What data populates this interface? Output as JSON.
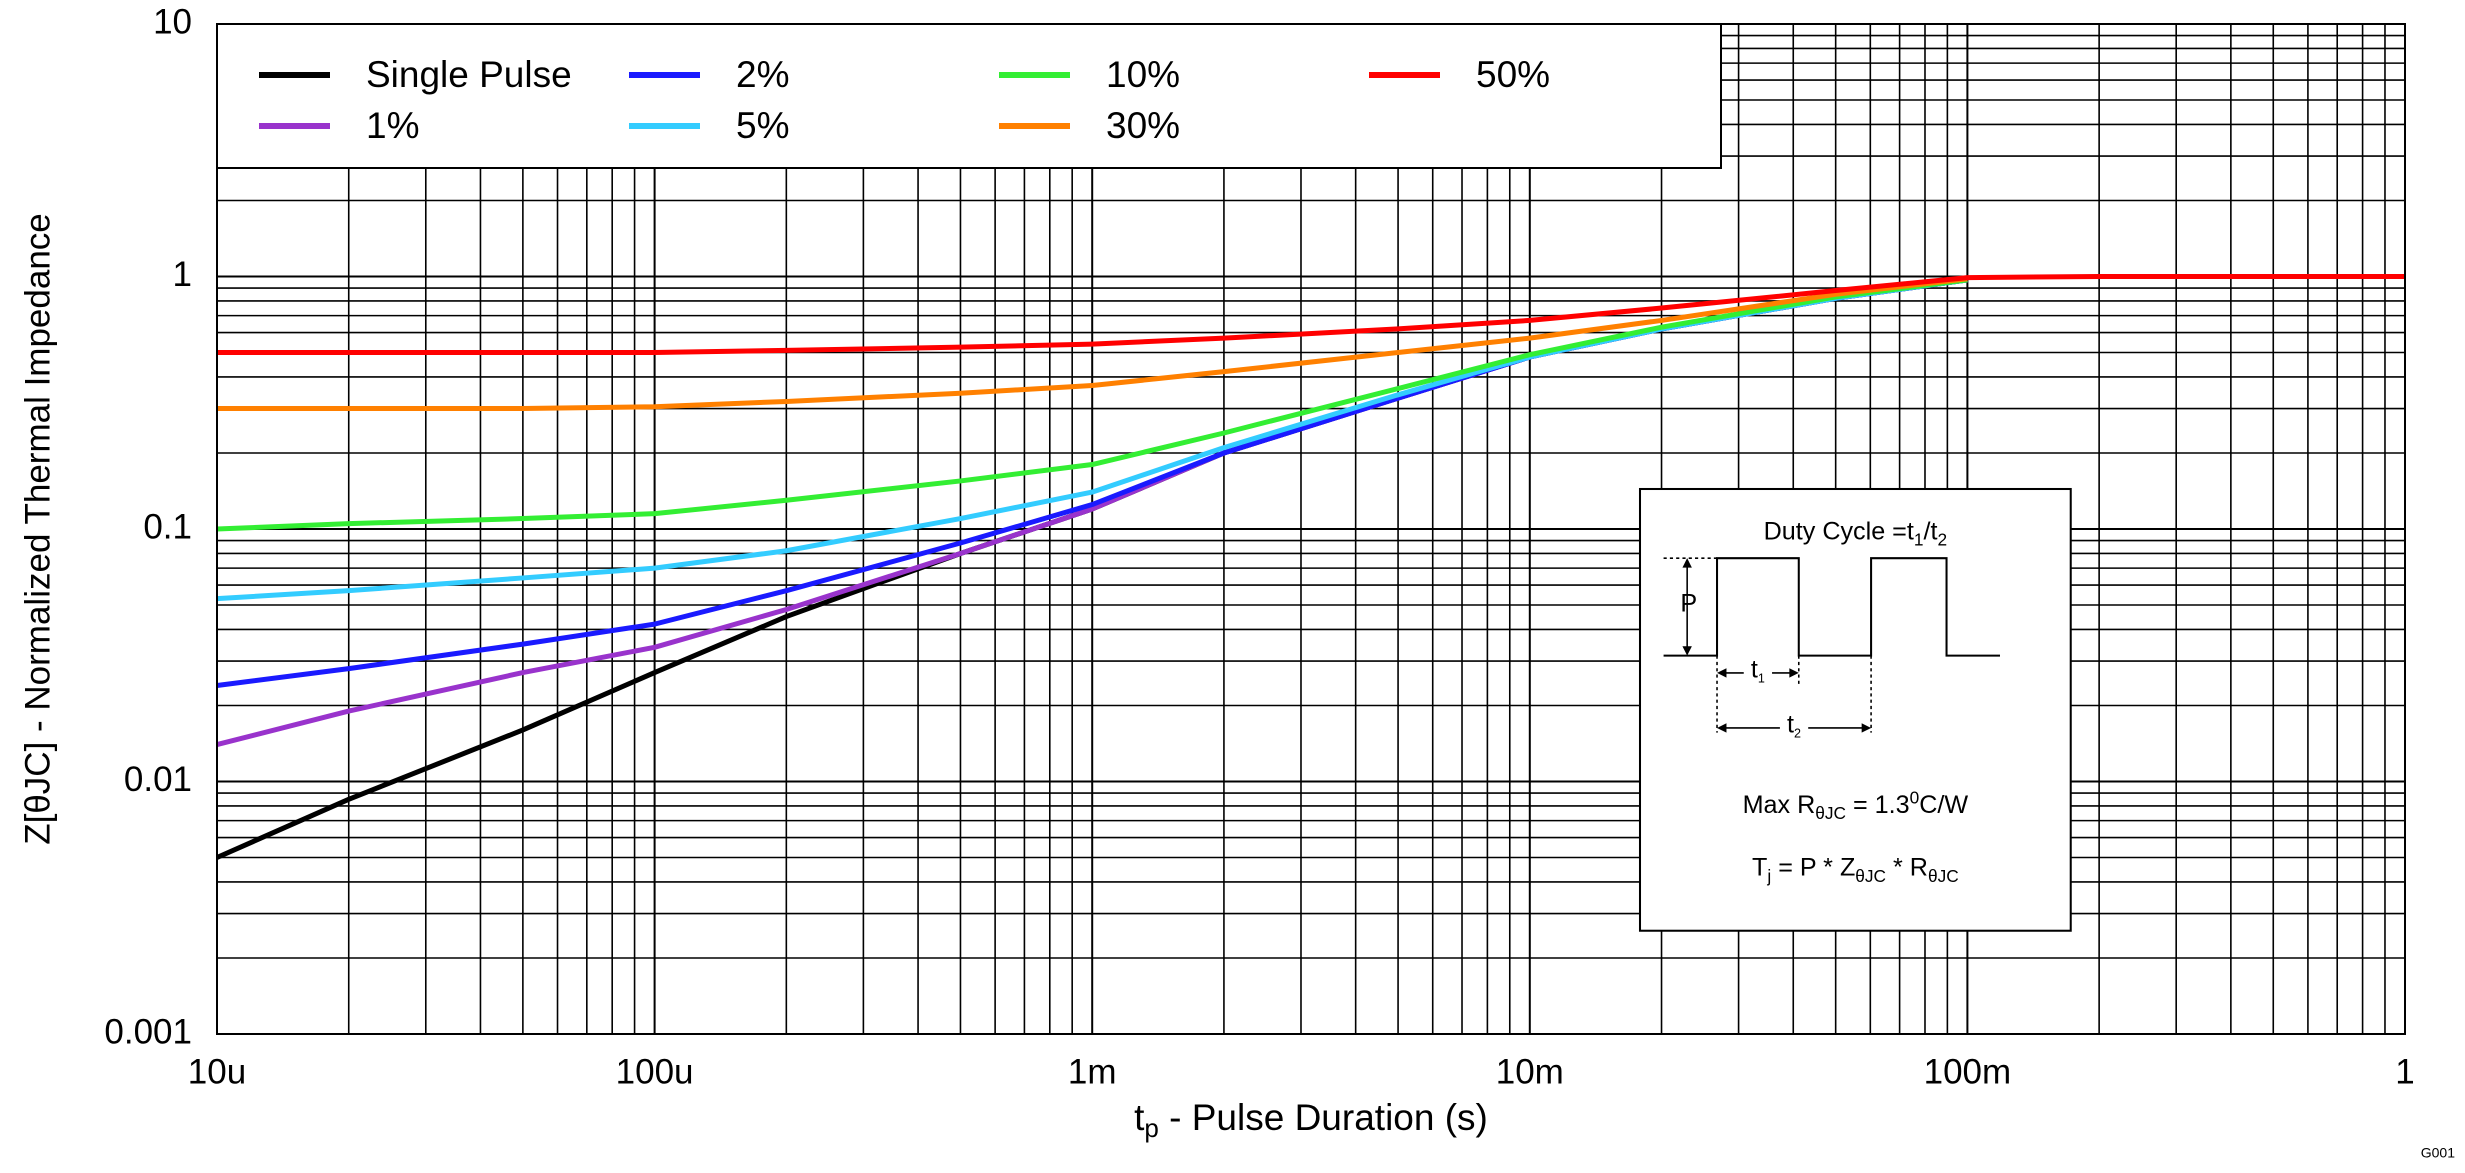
{
  "chart_data": {
    "type": "line",
    "xlabel": [
      "t",
      "p",
      " - Pulse Duration (s)"
    ],
    "ylabel": "Z[θJC] - Normalized Thermal Impedance",
    "footnote": "G001",
    "log_x": true,
    "log_y": true,
    "grid": true,
    "legend": "upper left",
    "xlim": [
      1e-05,
      1
    ],
    "ylim": [
      0.001,
      10
    ],
    "xticks": [
      {
        "value": 1e-05,
        "label": "10u"
      },
      {
        "value": 0.0001,
        "label": "100u"
      },
      {
        "value": 0.001,
        "label": "1m"
      },
      {
        "value": 0.01,
        "label": "10m"
      },
      {
        "value": 0.1,
        "label": "100m"
      },
      1
    ],
    "yticks": [
      0.001,
      0.01,
      0.1,
      1,
      10
    ],
    "x": [
      1e-05,
      2e-05,
      5e-05,
      0.0001,
      0.0002,
      0.0005,
      0.001,
      0.002,
      0.005,
      0.01,
      0.02,
      0.05,
      0.1,
      0.2,
      0.5,
      1
    ],
    "series": [
      {
        "name": "Single Pulse",
        "color": "#000000",
        "values": [
          0.005,
          0.0085,
          0.016,
          0.027,
          0.045,
          0.08,
          0.12,
          0.2,
          0.33,
          0.48,
          0.62,
          0.82,
          0.97,
          null,
          null,
          null
        ]
      },
      {
        "name": "1%",
        "color": "#9933cc",
        "values": [
          0.014,
          0.019,
          0.027,
          0.034,
          0.048,
          0.08,
          0.12,
          0.2,
          0.33,
          0.48,
          0.62,
          0.82,
          0.97,
          null,
          null,
          null
        ]
      },
      {
        "name": "2%",
        "color": "#1a1aff",
        "values": [
          0.024,
          0.028,
          0.035,
          0.042,
          0.057,
          0.088,
          0.125,
          0.2,
          0.33,
          0.48,
          0.62,
          0.82,
          0.97,
          null,
          null,
          null
        ]
      },
      {
        "name": "5%",
        "color": "#33ccff",
        "values": [
          0.053,
          0.057,
          0.064,
          0.07,
          0.082,
          0.11,
          0.14,
          0.21,
          0.34,
          0.48,
          0.62,
          0.82,
          0.97,
          null,
          null,
          null
        ]
      },
      {
        "name": "10%",
        "color": "#33ee33",
        "values": [
          0.1,
          0.105,
          0.11,
          0.115,
          0.13,
          0.155,
          0.18,
          0.24,
          0.36,
          0.49,
          0.63,
          0.83,
          0.97,
          null,
          null,
          null
        ]
      },
      {
        "name": "30%",
        "color": "#ff8000",
        "values": [
          0.3,
          0.3,
          0.3,
          0.305,
          0.32,
          0.345,
          0.37,
          0.42,
          0.5,
          0.57,
          0.67,
          0.85,
          0.98,
          null,
          null,
          null
        ]
      },
      {
        "name": "50%",
        "color": "#ff0000",
        "values": [
          0.5,
          0.5,
          0.5,
          0.5,
          0.51,
          0.525,
          0.54,
          0.57,
          0.62,
          0.67,
          0.75,
          0.88,
          0.99,
          1,
          1,
          1
        ]
      }
    ],
    "inset": {
      "title": [
        "Duty Cycle =t",
        "1",
        "/t",
        "2"
      ],
      "p_label": "P",
      "t1_label": [
        "t",
        "1"
      ],
      "t2_label": [
        "t",
        "2"
      ],
      "max_r": [
        "Max R",
        "θJC",
        " = 1.3",
        "0",
        "C/W"
      ],
      "tj": [
        "T",
        "j",
        " = P * Z",
        "θJC",
        "  * R",
        "θJC"
      ]
    }
  }
}
